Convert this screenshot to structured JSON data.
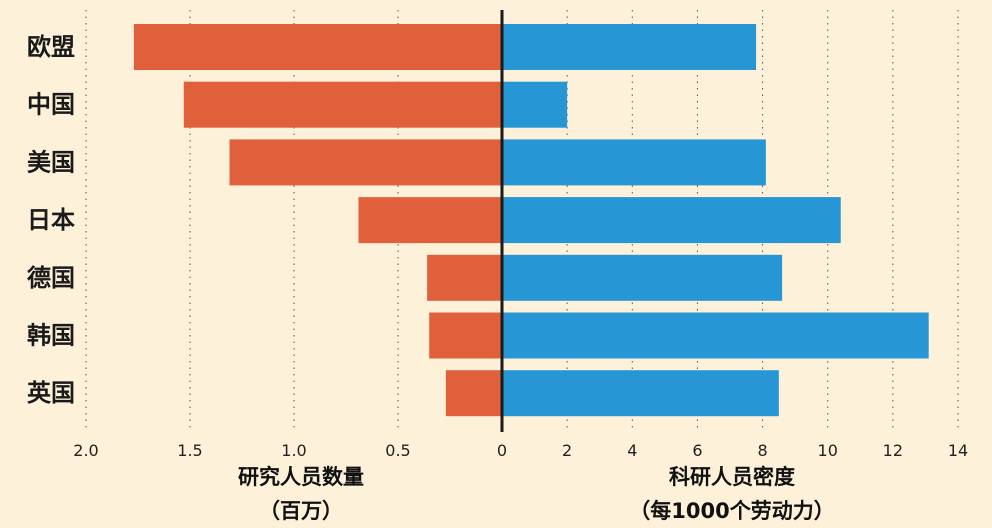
{
  "chart_data": [
    {
      "type": "bar",
      "orientation": "horizontal",
      "direction": "leftward",
      "categories": [
        "欧盟",
        "中国",
        "美国",
        "日本",
        "德国",
        "韩国",
        "英国"
      ],
      "series": [
        {
          "values": [
            1.77,
            1.53,
            1.31,
            0.69,
            0.36,
            0.35,
            0.27
          ]
        }
      ],
      "xlabel": [
        "研究人员数量",
        "（百万）"
      ],
      "xlim": [
        2.0,
        0
      ],
      "ticks": [
        "2.0",
        "1.5",
        "1.0",
        "0.5"
      ],
      "grid": true,
      "color": "#e0603b"
    },
    {
      "type": "bar",
      "orientation": "horizontal",
      "direction": "rightward",
      "categories": [
        "欧盟",
        "中国",
        "美国",
        "日本",
        "德国",
        "韩国",
        "英国"
      ],
      "series": [
        {
          "values": [
            7.8,
            2.0,
            8.1,
            10.4,
            8.6,
            13.1,
            8.5
          ]
        }
      ],
      "xlabel": [
        "科研人员密度",
        "（每1000个劳动力）"
      ],
      "xlim": [
        0,
        14
      ],
      "ticks": [
        "0",
        "2",
        "4",
        "6",
        "8",
        "10",
        "12",
        "14"
      ],
      "grid": true,
      "color": "#2697d4"
    }
  ]
}
